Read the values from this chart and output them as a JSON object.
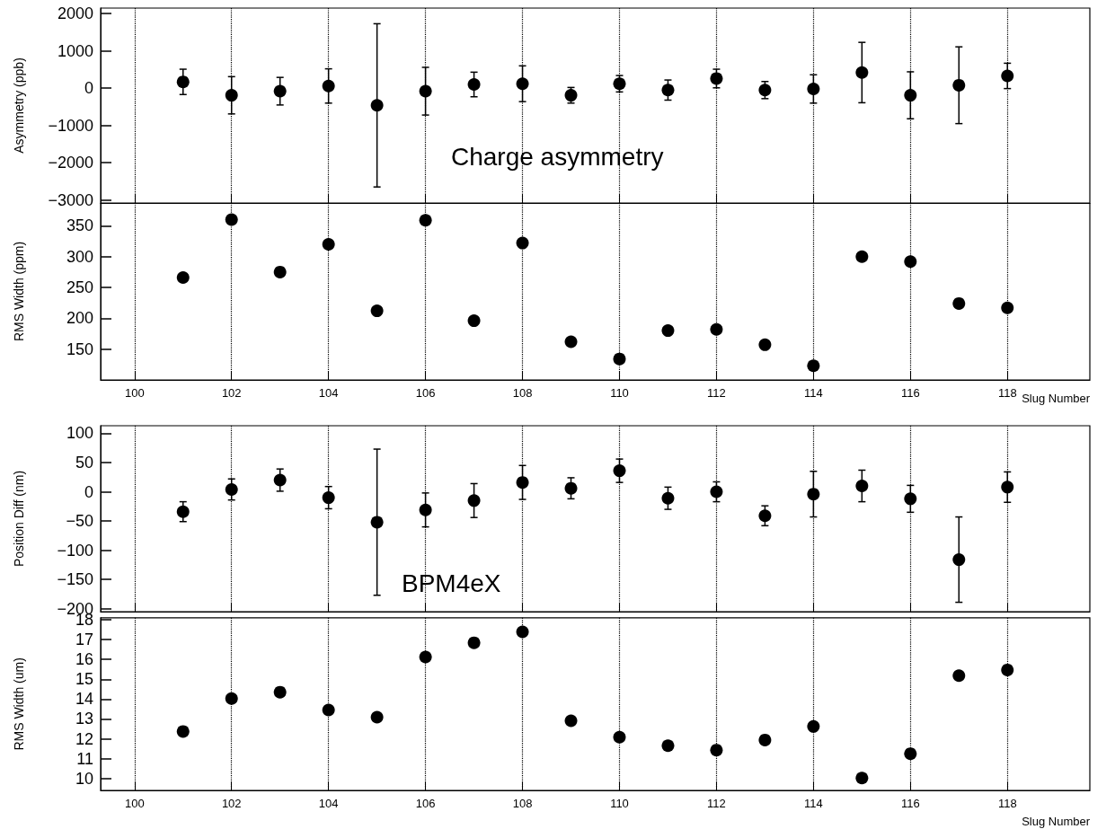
{
  "chart_data": [
    {
      "type": "scatter",
      "ylabel": "Asymmetry (ppb)",
      "annotations": [
        "Charge asymmetry"
      ],
      "x": [
        101,
        102,
        103,
        104,
        105,
        106,
        107,
        108,
        109,
        110,
        111,
        112,
        113,
        114,
        115,
        116,
        117,
        118
      ],
      "values": [
        170,
        -190,
        -80,
        60,
        -460,
        -80,
        100,
        120,
        -190,
        120,
        -50,
        260,
        -50,
        -20,
        420,
        -190,
        80,
        330
      ],
      "errors": [
        340,
        500,
        370,
        460,
        2190,
        640,
        330,
        480,
        210,
        220,
        270,
        250,
        230,
        380,
        810,
        630,
        1030,
        340
      ],
      "color": "#000000",
      "marker": "circle",
      "grid": "x",
      "tick_labels": "y",
      "xlim": [
        99.3,
        119.7
      ],
      "xticks": [
        100,
        102,
        104,
        106,
        108,
        110,
        112,
        114,
        116,
        118
      ],
      "ylim": [
        -3080,
        2150
      ],
      "yticks": [
        -3000,
        -2000,
        -1000,
        0,
        1000,
        2000
      ]
    },
    {
      "type": "scatter",
      "ylabel": "RMS Width (ppm)",
      "xlabel": "Slug Number",
      "x": [
        101,
        102,
        103,
        104,
        105,
        106,
        107,
        108,
        109,
        110,
        111,
        112,
        113,
        114,
        115,
        116,
        117,
        118
      ],
      "values": [
        266,
        360,
        275,
        320,
        212,
        359,
        196,
        322,
        162,
        134,
        180,
        182,
        157,
        123,
        300,
        292,
        224,
        217
      ],
      "color": "#000000",
      "marker": "circle",
      "grid": "x",
      "xlim": [
        99.3,
        119.7
      ],
      "xticks": [
        100,
        102,
        104,
        106,
        108,
        110,
        112,
        114,
        116,
        118
      ],
      "ylim": [
        100,
        387
      ],
      "yticks": [
        150,
        200,
        250,
        300,
        350
      ]
    },
    {
      "type": "scatter",
      "ylabel": "Position Diff (nm)",
      "annotations": [
        "BPM4eX"
      ],
      "x": [
        101,
        102,
        103,
        104,
        105,
        106,
        107,
        108,
        109,
        110,
        111,
        112,
        113,
        114,
        115,
        116,
        117,
        118
      ],
      "values": [
        -34,
        4,
        20,
        -10,
        -52,
        -31,
        -15,
        16,
        6,
        36,
        -11,
        0,
        -41,
        -4,
        10,
        -12,
        -116,
        8
      ],
      "errors": [
        17,
        18,
        19,
        19,
        125,
        29,
        29,
        29,
        18,
        20,
        19,
        17,
        17,
        39,
        27,
        23,
        73,
        26
      ],
      "color": "#000000",
      "marker": "circle",
      "grid": "x",
      "tick_labels": "y",
      "xlim": [
        99.3,
        119.7
      ],
      "xticks": [
        100,
        102,
        104,
        106,
        108,
        110,
        112,
        114,
        116,
        118
      ],
      "ylim": [
        -205,
        113
      ],
      "yticks": [
        -200,
        -150,
        -100,
        -50,
        0,
        50,
        100
      ]
    },
    {
      "type": "scatter",
      "ylabel": "RMS Width (um)",
      "xlabel": "Slug Number",
      "x": [
        101,
        102,
        103,
        104,
        105,
        106,
        107,
        108,
        109,
        110,
        111,
        112,
        113,
        114,
        115,
        116,
        117,
        118
      ],
      "values": [
        12.37,
        14.03,
        14.35,
        13.45,
        13.09,
        16.12,
        16.84,
        17.39,
        12.91,
        12.08,
        11.65,
        11.43,
        11.94,
        12.62,
        10.02,
        11.25,
        15.18,
        15.47
      ],
      "color": "#000000",
      "marker": "circle",
      "grid": "x",
      "xlim": [
        99.3,
        119.7
      ],
      "xticks": [
        100,
        102,
        104,
        106,
        108,
        110,
        112,
        114,
        116,
        118
      ],
      "ylim": [
        9.4,
        18.1
      ],
      "yticks": [
        10,
        11,
        12,
        13,
        14,
        15,
        16,
        17,
        18
      ]
    }
  ]
}
